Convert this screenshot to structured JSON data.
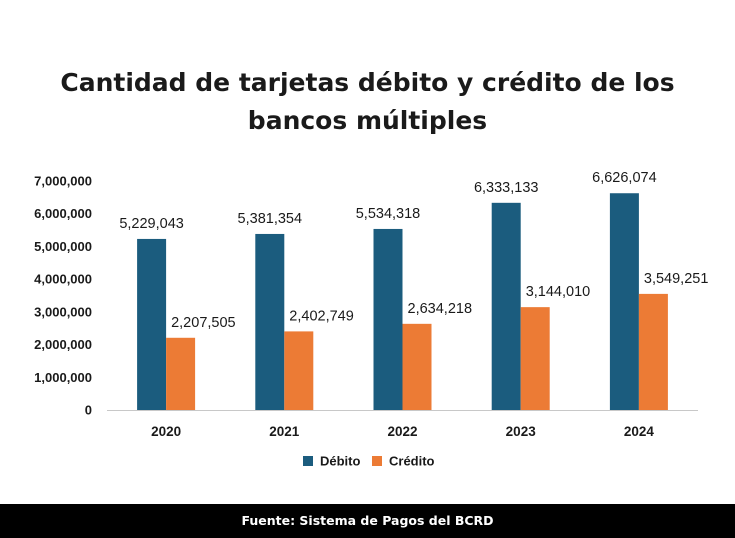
{
  "chart_data": {
    "type": "bar",
    "title_lines": [
      "Cantidad de tarjetas débito y crédito de los",
      "bancos múltiples"
    ],
    "categories": [
      "2020",
      "2021",
      "2022",
      "2023",
      "2024"
    ],
    "series": [
      {
        "name": "Débito",
        "color": "#1b5c7e",
        "values": [
          5229043,
          5381354,
          5534318,
          6333133,
          6626074
        ],
        "labels": [
          "5,229,043",
          "5,381,354",
          "5,534,318",
          "6,333,133",
          "6,626,074"
        ]
      },
      {
        "name": "Crédito",
        "color": "#ec7b35",
        "values": [
          2207505,
          2402749,
          2634218,
          3144010,
          3549251
        ],
        "labels": [
          "2,207,505",
          "2,402,749",
          "2,634,218",
          "3,144,010",
          "3,549,251"
        ]
      }
    ],
    "ylim": [
      0,
      7000000
    ],
    "yticks": [
      0,
      1000000,
      2000000,
      3000000,
      4000000,
      5000000,
      6000000,
      7000000
    ],
    "ytick_labels": [
      "0",
      "1,000,000",
      "2,000,000",
      "3,000,000",
      "4,000,000",
      "5,000,000",
      "6,000,000",
      "7,000,000"
    ],
    "xlabel": "",
    "ylabel": "",
    "grid": false,
    "legend": "bottom-center"
  },
  "footer": {
    "source": "Fuente: Sistema de Pagos del BCRD"
  }
}
